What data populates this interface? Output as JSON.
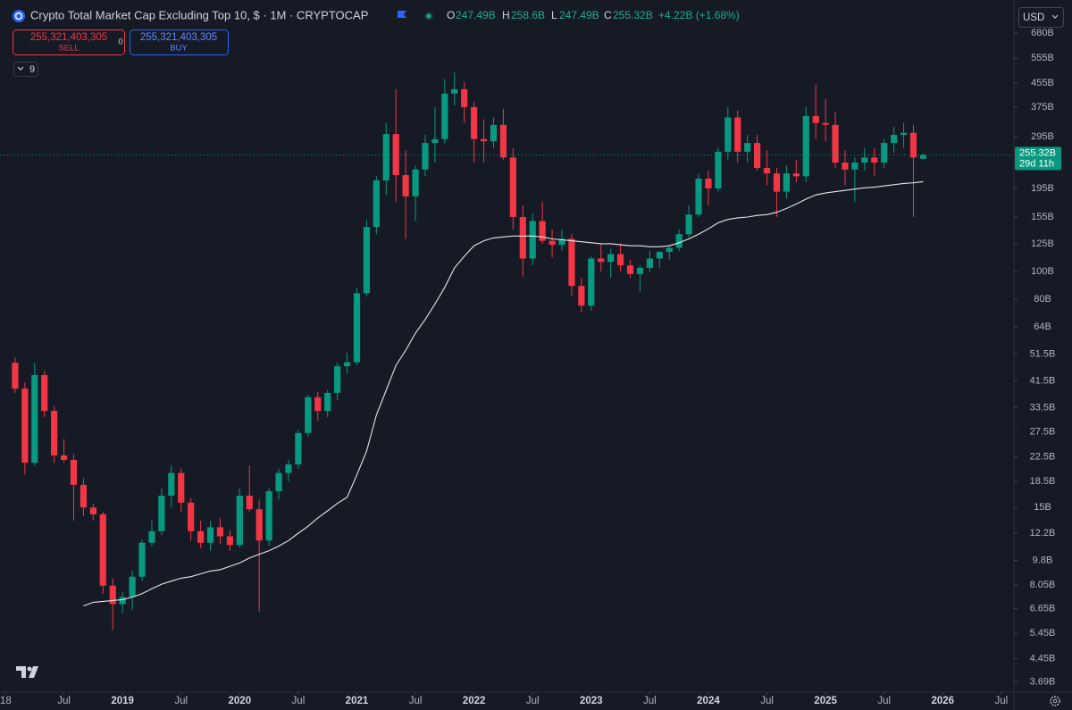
{
  "chart_data": {
    "type": "candlestick",
    "title": "Crypto Total Market Cap Excluding Top 10, $ · 1M · CRYPTOCAP",
    "x": [
      "2018-02",
      "2018-03",
      "2018-04",
      "2018-05",
      "2018-06",
      "2018-07",
      "2018-08",
      "2018-09",
      "2018-10",
      "2018-11",
      "2018-12",
      "2019-01",
      "2019-02",
      "2019-03",
      "2019-04",
      "2019-05",
      "2019-06",
      "2019-07",
      "2019-08",
      "2019-09",
      "2019-10",
      "2019-11",
      "2019-12",
      "2020-01",
      "2020-02",
      "2020-03",
      "2020-04",
      "2020-05",
      "2020-06",
      "2020-07",
      "2020-08",
      "2020-09",
      "2020-10",
      "2020-11",
      "2020-12",
      "2021-01",
      "2021-02",
      "2021-03",
      "2021-04",
      "2021-05",
      "2021-06",
      "2021-07",
      "2021-08",
      "2021-09",
      "2021-10",
      "2021-11",
      "2021-12",
      "2022-01",
      "2022-02",
      "2022-03",
      "2022-04",
      "2022-05",
      "2022-06",
      "2022-07",
      "2022-08",
      "2022-09",
      "2022-10",
      "2022-11",
      "2022-12",
      "2023-01",
      "2023-02",
      "2023-03",
      "2023-04",
      "2023-05",
      "2023-06",
      "2023-07",
      "2023-08",
      "2023-09",
      "2023-10",
      "2023-11",
      "2023-12",
      "2024-01",
      "2024-02",
      "2024-03",
      "2024-04",
      "2024-05",
      "2024-06",
      "2024-07",
      "2024-08",
      "2024-09",
      "2024-10",
      "2024-11",
      "2024-12",
      "2025-01",
      "2025-02",
      "2025-03",
      "2025-04",
      "2025-05",
      "2025-06",
      "2025-07",
      "2025-08",
      "2025-09",
      "2025-10",
      "2025-11"
    ],
    "open": [
      48,
      39,
      21.5,
      43.5,
      32.6,
      22.8,
      22,
      18,
      15,
      14.2,
      8.0,
      6.9,
      7.3,
      8.6,
      11.3,
      12.4,
      16.5,
      19.8,
      15.6,
      12.4,
      11.3,
      12.8,
      11.9,
      11.1,
      16.5,
      14.8,
      11.5,
      17.1,
      19.8,
      21.2,
      27.3,
      36.4,
      32.6,
      37.7,
      46.7,
      48.2,
      84,
      143,
      208,
      302,
      217,
      183,
      227,
      281,
      290,
      418,
      433,
      375,
      290,
      285,
      325,
      250,
      155,
      111,
      150,
      128,
      124,
      130,
      89,
      76,
      111,
      108,
      115,
      105,
      98,
      103,
      111,
      117,
      121,
      135,
      158,
      211,
      195,
      262,
      345,
      262,
      281,
      230,
      220,
      190,
      220,
      215,
      349,
      330,
      325,
      240,
      227,
      240,
      250,
      240,
      281,
      300,
      305,
      247.49
    ],
    "high": [
      50,
      41,
      48,
      45,
      34,
      26,
      23,
      19,
      15.5,
      14.5,
      8.5,
      7.6,
      9.0,
      11.6,
      13.5,
      17.5,
      21,
      20.5,
      16.2,
      13.5,
      13.5,
      13.8,
      12.5,
      17.5,
      21,
      16,
      17.5,
      20.5,
      22,
      28,
      37,
      38,
      38.5,
      48,
      52,
      88,
      152,
      215,
      330,
      433,
      265,
      235,
      300,
      375,
      470,
      495,
      460,
      390,
      340,
      345,
      370,
      270,
      170,
      160,
      175,
      140,
      140,
      135,
      95,
      113,
      125,
      120,
      125,
      110,
      105,
      118,
      118,
      123,
      140,
      170,
      220,
      225,
      270,
      375,
      365,
      300,
      300,
      265,
      230,
      235,
      245,
      375,
      450,
      400,
      360,
      265,
      250,
      270,
      270,
      290,
      320,
      330,
      325,
      258.6
    ],
    "low": [
      37.7,
      19.5,
      21,
      31,
      21.5,
      21.5,
      13.5,
      14,
      13.5,
      7.5,
      5.6,
      6.4,
      6.6,
      8.3,
      11,
      12,
      15,
      14.5,
      11.5,
      10.8,
      10.6,
      11.2,
      10.6,
      10.9,
      14.5,
      6.5,
      11,
      16,
      18.5,
      20.5,
      26.5,
      30,
      31,
      35.5,
      44,
      47,
      82,
      135,
      185,
      175,
      130,
      150,
      215,
      240,
      280,
      380,
      330,
      240,
      240,
      270,
      245,
      140,
      96,
      105,
      125,
      112,
      118,
      82,
      72,
      73,
      100,
      95,
      100,
      95,
      85,
      100,
      103,
      110,
      118,
      132,
      155,
      170,
      190,
      245,
      240,
      240,
      225,
      200,
      155,
      180,
      205,
      205,
      290,
      285,
      230,
      200,
      175,
      225,
      215,
      230,
      260,
      270,
      155,
      247.49
    ],
    "close": [
      39,
      21.5,
      43.5,
      32.6,
      22.8,
      22,
      18,
      15,
      14.2,
      8.0,
      6.9,
      7.3,
      8.6,
      11.3,
      12.4,
      16.5,
      19.8,
      15.6,
      12.4,
      11.3,
      12.8,
      11.9,
      11.1,
      16.5,
      14.8,
      11.5,
      17.1,
      19.8,
      21.2,
      27.3,
      36.4,
      32.6,
      37.7,
      46.7,
      48.2,
      84,
      143,
      208,
      302,
      217,
      183,
      227,
      281,
      290,
      418,
      433,
      375,
      290,
      285,
      325,
      250,
      155,
      111,
      150,
      128,
      124,
      130,
      89,
      76,
      111,
      108,
      115,
      105,
      98,
      103,
      111,
      117,
      121,
      135,
      158,
      211,
      195,
      262,
      345,
      262,
      281,
      230,
      220,
      190,
      220,
      215,
      349,
      330,
      325,
      240,
      227,
      240,
      250,
      240,
      281,
      300,
      305,
      250,
      255.32
    ],
    "line_values": [
      null,
      null,
      null,
      null,
      null,
      null,
      null,
      6.8,
      7.0,
      7.05,
      7.1,
      7.15,
      7.3,
      7.5,
      7.8,
      8.1,
      8.3,
      8.5,
      8.6,
      8.8,
      9.0,
      9.1,
      9.35,
      9.6,
      10.0,
      10.3,
      10.6,
      11.0,
      11.5,
      12.2,
      12.9,
      13.8,
      14.6,
      15.5,
      16.3,
      19.5,
      23.6,
      31.5,
      38.5,
      47,
      53,
      61,
      68,
      77,
      88,
      103,
      113,
      123,
      128,
      131,
      132,
      133,
      133,
      133,
      132,
      130,
      129,
      128,
      127,
      126,
      125,
      125,
      124,
      123,
      123,
      122,
      122,
      123,
      126,
      130,
      135,
      141,
      148,
      152,
      154,
      155,
      157,
      158,
      161,
      166,
      172,
      179,
      185,
      188,
      190,
      192,
      194,
      196,
      197,
      199,
      201,
      203,
      204,
      206
    ],
    "up_color": "#089981",
    "down_color": "#f23645",
    "line_color": "#e6e6e6",
    "log": true,
    "ylim": [
      3.4,
      887
    ],
    "yticks": [
      {
        "value": 680,
        "label": "680B"
      },
      {
        "value": 555,
        "label": "555B"
      },
      {
        "value": 455,
        "label": "455B"
      },
      {
        "value": 375,
        "label": "375B"
      },
      {
        "value": 295,
        "label": "295B"
      },
      {
        "value": 195,
        "label": "195B"
      },
      {
        "value": 155,
        "label": "155B"
      },
      {
        "value": 125,
        "label": "125B"
      },
      {
        "value": 100,
        "label": "100B"
      },
      {
        "value": 80,
        "label": "80B"
      },
      {
        "value": 64,
        "label": "64B"
      },
      {
        "value": 51.5,
        "label": "51.5B"
      },
      {
        "value": 41.5,
        "label": "41.5B"
      },
      {
        "value": 33.5,
        "label": "33.5B"
      },
      {
        "value": 27.5,
        "label": "27.5B"
      },
      {
        "value": 22.5,
        "label": "22.5B"
      },
      {
        "value": 18.5,
        "label": "18.5B"
      },
      {
        "value": 15,
        "label": "15B"
      },
      {
        "value": 12.2,
        "label": "12.2B"
      },
      {
        "value": 9.8,
        "label": "9.8B"
      },
      {
        "value": 8.05,
        "label": "8.05B"
      },
      {
        "value": 6.65,
        "label": "6.65B"
      },
      {
        "value": 5.45,
        "label": "5.45B"
      },
      {
        "value": 4.45,
        "label": "4.45B"
      },
      {
        "value": 3.69,
        "label": "3.69B"
      }
    ],
    "xticks": [
      {
        "value": "2018-01",
        "label": "18"
      },
      {
        "value": "2018-07",
        "label": "Jul"
      },
      {
        "value": "2019-01",
        "label": "2019"
      },
      {
        "value": "2019-07",
        "label": "Jul"
      },
      {
        "value": "2020-01",
        "label": "2020"
      },
      {
        "value": "2020-07",
        "label": "Jul"
      },
      {
        "value": "2021-01",
        "label": "2021"
      },
      {
        "value": "2021-07",
        "label": "Jul"
      },
      {
        "value": "2022-01",
        "label": "2022"
      },
      {
        "value": "2022-07",
        "label": "Jul"
      },
      {
        "value": "2023-01",
        "label": "2023"
      },
      {
        "value": "2023-07",
        "label": "Jul"
      },
      {
        "value": "2024-01",
        "label": "2024"
      },
      {
        "value": "2024-07",
        "label": "Jul"
      },
      {
        "value": "2025-01",
        "label": "2025"
      },
      {
        "value": "2025-07",
        "label": "Jul"
      },
      {
        "value": "2026-01",
        "label": "2026"
      },
      {
        "value": "2026-07",
        "label": "Jul"
      }
    ],
    "price_tag": "255.32B",
    "countdown": "29d 11h"
  },
  "ui": {
    "ohlc": [
      {
        "key": "O",
        "text": "247.49B"
      },
      {
        "key": "H",
        "text": "258.6B"
      },
      {
        "key": "L",
        "text": "247.49B"
      },
      {
        "key": "C",
        "text": "255.32B"
      }
    ],
    "change": "+4.22B (+1.68%)",
    "sell_price": "255,321,403,305",
    "sell_label": "SELL",
    "spread": "0",
    "buy_price": "255,321,403,305",
    "buy_label": "BUY",
    "indicators": "9",
    "currency": "USD"
  }
}
